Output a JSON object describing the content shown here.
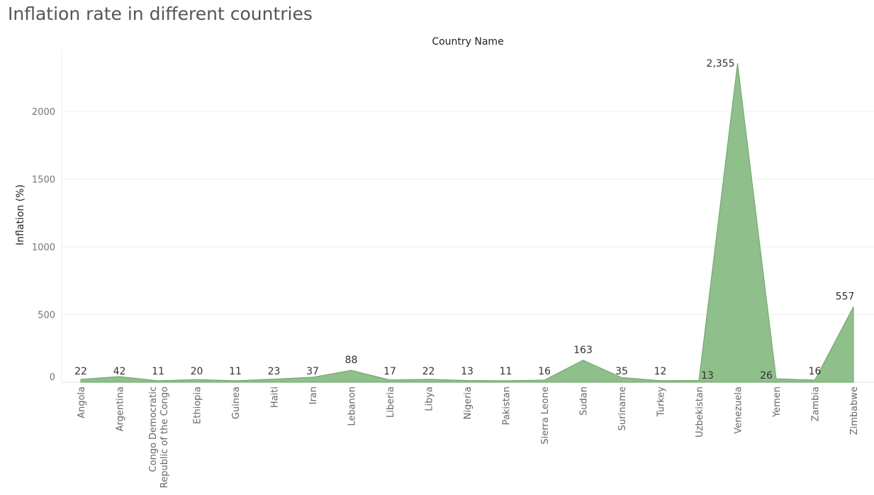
{
  "title": "Inflation rate in different countries",
  "colors": {
    "area_fill": "#8fbf8b",
    "area_stroke": "#6aa566",
    "grid": "#ececec"
  },
  "chart_data": {
    "type": "area",
    "xlabel": "Country Name",
    "ylabel": "Inflation (%)",
    "ylim": [
      0,
      2400
    ],
    "yticks": [
      0,
      500,
      1000,
      1500,
      2000
    ],
    "grid": true,
    "categories": [
      "Angola",
      "Argentina",
      "Congo Democratic Republic of the Congo",
      "Ethiopia",
      "Guinea",
      "Haiti",
      "Iran",
      "Lebanon",
      "Liberia",
      "Libya",
      "Nigeria",
      "Pakistan",
      "Sierra Leone",
      "Sudan",
      "Suriname",
      "Turkey",
      "Uzbekistan",
      "Venezuela",
      "Yemen",
      "Zambia",
      "Zimbabwe"
    ],
    "values": [
      22,
      42,
      11,
      20,
      11,
      23,
      37,
      88,
      17,
      22,
      13,
      11,
      16,
      163,
      35,
      12,
      13,
      2355,
      26,
      16,
      557
    ],
    "data_labels": [
      "22",
      "42",
      "11",
      "20",
      "11",
      "23",
      "37",
      "88",
      "17",
      "22",
      "13",
      "11",
      "16",
      "163",
      "35",
      "12",
      "13",
      "2,355",
      "26",
      "16",
      "557"
    ]
  }
}
